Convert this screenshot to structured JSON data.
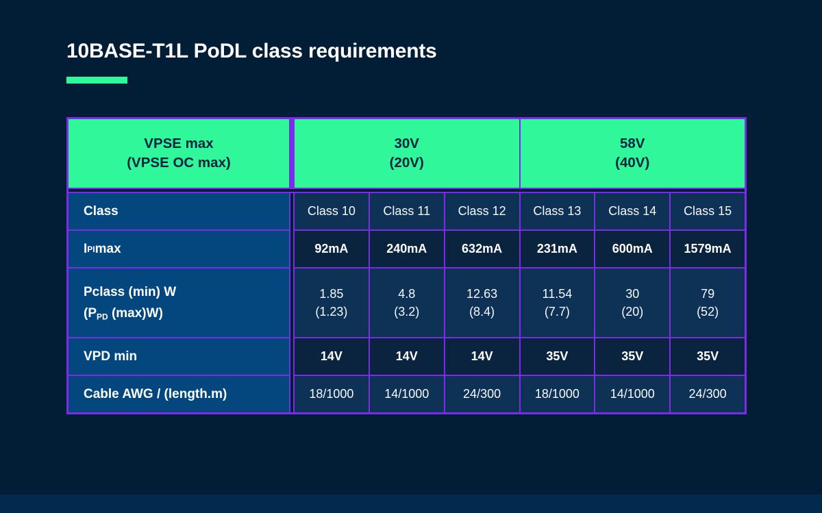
{
  "title": "10BASE-T1L PoDL class requirements",
  "colors": {
    "page_bg": "#021E37",
    "footer_strip": "#022A4C",
    "accent_green": "#2FF79A",
    "border_purple": "#7C2BE8",
    "label_cell_blue": "#04477E",
    "row_light_navy": "#0E3156",
    "row_dark_navy": "#0A2440",
    "header_text_navy": "#03233F",
    "body_text": "#FFFFFF"
  },
  "table": {
    "header": {
      "vpse": {
        "line1": "VPSE max",
        "line2": "(VPSE OC max)"
      },
      "group_30v": {
        "line1": "30V",
        "line2": "(20V)"
      },
      "group_58v": {
        "line1": "58V",
        "line2": "(40V)"
      }
    },
    "row_labels": {
      "class": "Class",
      "ipi_pre": "I",
      "ipi_sub": "PI",
      "ipi_post": " max",
      "pclass_line1": "Pclass (min) W",
      "pclass_line2_pre": "(P",
      "pclass_line2_sub": "PD",
      "pclass_line2_post": " (max)W)",
      "vpd": "VPD min",
      "cable": "Cable AWG / (length.m)"
    },
    "columns": [
      {
        "name": "Class 10",
        "ipi_max": "92mA",
        "pclass_min": "1.85",
        "ppd_max": "(1.23)",
        "vpd_min": "14V",
        "cable": "18/1000"
      },
      {
        "name": "Class 11",
        "ipi_max": "240mA",
        "pclass_min": "4.8",
        "ppd_max": "(3.2)",
        "vpd_min": "14V",
        "cable": "14/1000"
      },
      {
        "name": "Class 12",
        "ipi_max": "632mA",
        "pclass_min": "12.63",
        "ppd_max": "(8.4)",
        "vpd_min": "14V",
        "cable": "24/300"
      },
      {
        "name": "Class 13",
        "ipi_max": "231mA",
        "pclass_min": "11.54",
        "ppd_max": "(7.7)",
        "vpd_min": "35V",
        "cable": "18/1000"
      },
      {
        "name": "Class 14",
        "ipi_max": "600mA",
        "pclass_min": "30",
        "ppd_max": "(20)",
        "vpd_min": "35V",
        "cable": "14/1000"
      },
      {
        "name": "Class 15",
        "ipi_max": "1579mA",
        "pclass_min": "79",
        "ppd_max": "(52)",
        "vpd_min": "35V",
        "cable": "24/300"
      }
    ]
  },
  "chart_data": {
    "type": "table",
    "title": "10BASE-T1L PoDL class requirements",
    "header_groups": [
      "VPSE max (VPSE OC max)",
      "30V (20V)",
      "58V (40V)"
    ],
    "columns": [
      "Class 10",
      "Class 11",
      "Class 12",
      "Class 13",
      "Class 14",
      "Class 15"
    ],
    "row_headers": [
      "Class",
      "IPI max",
      "Pclass (min) W (PPD (max)W)",
      "VPD min",
      "Cable AWG / (length.m)"
    ],
    "rows": [
      [
        "Class 10",
        "Class 11",
        "Class 12",
        "Class 13",
        "Class 14",
        "Class 15"
      ],
      [
        "92mA",
        "240mA",
        "632mA",
        "231mA",
        "600mA",
        "1579mA"
      ],
      [
        "1.85 (1.23)",
        "4.8 (3.2)",
        "12.63 (8.4)",
        "11.54 (7.7)",
        "30 (20)",
        "79 (52)"
      ],
      [
        "14V",
        "14V",
        "14V",
        "35V",
        "35V",
        "35V"
      ],
      [
        "18/1000",
        "14/1000",
        "24/300",
        "18/1000",
        "14/1000",
        "24/300"
      ]
    ]
  }
}
